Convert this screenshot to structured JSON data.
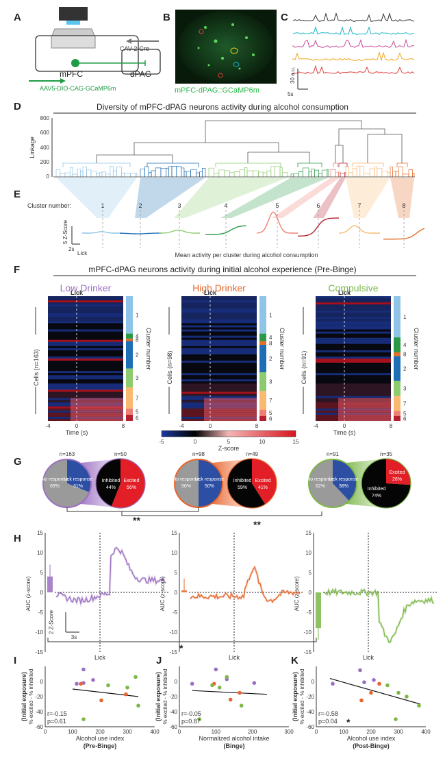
{
  "figure": {
    "panels": {
      "A": "A",
      "B": "B",
      "C": "C",
      "D": "D",
      "E": "E",
      "F": "F",
      "G": "G",
      "H": "H",
      "I": "I",
      "J": "J",
      "K": "K"
    },
    "colors": {
      "low": "#9b6fc1",
      "high": "#e8652b",
      "comp": "#7cb748",
      "blue": "#2c4ea3",
      "red": "#e21f26",
      "gray": "#999999",
      "cyan": "#17b5c8",
      "gfp": "#2bc44a"
    }
  },
  "panel_a": {
    "mpfc": "mPFC",
    "dpag": "dPAG",
    "virus_retro": "CAV-2-Cre",
    "virus_label": "AAV5-DIO-CAG-GCaMP6m"
  },
  "panel_b": {
    "caption": "mPFC-dPAG::GCaMP6m"
  },
  "panel_c": {
    "scale_y": "30 a.u.",
    "scale_x": "5s",
    "trace_colors": [
      "#333333",
      "#17b5c8",
      "#c9489a",
      "#f2a51a",
      "#e03c3c"
    ]
  },
  "panel_d": {
    "title": "Diversity of mPFC-dPAG neurons activity during alcohol consumption",
    "ylabel": "Linkage",
    "yticks": [
      "800",
      "600",
      "400",
      "200",
      "0"
    ]
  },
  "panel_e": {
    "cluster_label": "Cluster number:",
    "clusters": [
      "1",
      "2",
      "3",
      "4",
      "5",
      "6",
      "7",
      "8"
    ],
    "cluster_colors": [
      "#8fc4e6",
      "#1f6fb5",
      "#8ccc6e",
      "#2a9a47",
      "#f07f73",
      "#b61f2d",
      "#f9b971",
      "#e2702a"
    ],
    "zscale": "5 Z-Score",
    "tscale": "2s",
    "lick": "Lick",
    "caption": "Mean activity per cluster during alcohol consumption"
  },
  "panel_f": {
    "title": "mPFC-dPAG neurons activity during initial alcohol experience (Pre-Binge)",
    "groups": [
      {
        "name": "Low Drinker",
        "cells": "Cells (n=163)",
        "color": "#9b6fc1"
      },
      {
        "name": "High Drinker",
        "cells": "Cells (n=98)",
        "color": "#e8652b"
      },
      {
        "name": "Compulsive",
        "cells": "Cells (n=91)",
        "color": "#7cb748"
      }
    ],
    "lick": "Lick",
    "xticks": [
      "-4",
      "0",
      "8"
    ],
    "xlabel": "Time (s)",
    "cluster_axis": "Cluster number",
    "cluster_order": [
      "1",
      "4",
      "8",
      "2",
      "3",
      "7",
      "5",
      "6"
    ],
    "cbar_ticks": [
      "-5",
      "0",
      "5",
      "10",
      "15"
    ],
    "cbar_label": "Z-score"
  },
  "panel_g": {
    "groups": [
      {
        "n_all": "n=163",
        "n_lick": "n=50",
        "no": "No response",
        "no_pct": "69%",
        "lick": "Lick response",
        "lick_pct": "31%",
        "inh": "Inhibited",
        "inh_pct": "44%",
        "exc": "Excited",
        "exc_pct": "56%"
      },
      {
        "n_all": "n=98",
        "n_lick": "n=49",
        "no": "No response",
        "no_pct": "50%",
        "lick": "Lick response",
        "lick_pct": "50%",
        "inh": "Inhibited",
        "inh_pct": "59%",
        "exc": "Excited",
        "exc_pct": "41%"
      },
      {
        "n_all": "n=91",
        "n_lick": "n=35",
        "no": "No response",
        "no_pct": "62%",
        "lick": "Lick response",
        "lick_pct": "38%",
        "inh": "Inhibited",
        "inh_pct": "74%",
        "exc": "Excited",
        "exc_pct": "26%"
      }
    ],
    "sig1": "**",
    "sig2": "**"
  },
  "panel_h": {
    "ylabel": "AUC (z-score)",
    "yticks": [
      "15",
      "10",
      "5",
      "0",
      "-5",
      "-10",
      "-15"
    ],
    "lick": "Lick",
    "zscale": "2 Z-Score",
    "tscale": "3s",
    "sig": "*"
  },
  "panel_ijk": {
    "ylabel1": "(Initial exposure)",
    "ylabel2": "% excited - % inhibited",
    "plots": [
      {
        "xlabel": "Alcohol use index",
        "sub": "(Pre-Binge)",
        "r": "r=-0.15",
        "p": "p=0.61",
        "star": "",
        "xticks": [
          "0",
          "100",
          "200",
          "300",
          "400"
        ]
      },
      {
        "xlabel": "Normalized alcohol intake",
        "sub": "(Binge)",
        "r": "r=-0.05",
        "p": "p=0.87",
        "star": "",
        "xticks": [
          "0",
          "100",
          "200",
          "300"
        ]
      },
      {
        "xlabel": "Alcohol use index",
        "sub": "(Post-Binge)",
        "r": "r=-0.58",
        "p": "p=0.04",
        "star": "*",
        "xticks": [
          "0",
          "100",
          "200",
          "300",
          "400"
        ]
      }
    ],
    "yticks": [
      "0",
      "-20",
      "-40",
      "-60"
    ]
  },
  "chart_data": [
    {
      "type": "scatter",
      "title": "I",
      "xlabel": "Alcohol use index (Pre-Binge)",
      "ylabel": "% excited - % inhibited",
      "xlim": [
        0,
        400
      ],
      "ylim": [
        -60,
        20
      ],
      "series": [
        {
          "name": "Low Drinker",
          "color": "#9b6fc1",
          "x": [
            115,
            140,
            175,
            140
          ],
          "y": [
            -3,
            16,
            2,
            -2
          ]
        },
        {
          "name": "High Drinker",
          "color": "#e8652b",
          "x": [
            130,
            205,
            295
          ],
          "y": [
            -3,
            -25,
            -17
          ]
        },
        {
          "name": "Compulsive",
          "color": "#7cb748",
          "x": [
            140,
            230,
            300,
            330,
            340
          ],
          "y": [
            -50,
            -5,
            -8,
            6,
            -32
          ]
        }
      ],
      "fit": {
        "x": [
          100,
          340
        ],
        "y": [
          -10,
          -20
        ]
      }
    },
    {
      "type": "scatter",
      "title": "J",
      "xlabel": "Normalized alcohol intake (Binge)",
      "ylabel": "% excited - % inhibited",
      "xlim": [
        0,
        300
      ],
      "ylim": [
        -60,
        20
      ],
      "series": [
        {
          "name": "Low Drinker",
          "color": "#9b6fc1",
          "x": [
            35,
            100,
            130,
            205
          ],
          "y": [
            -3,
            16,
            3,
            -2
          ]
        },
        {
          "name": "High Drinker",
          "color": "#e8652b",
          "x": [
            95,
            140,
            165
          ],
          "y": [
            -3,
            -24,
            -15
          ]
        },
        {
          "name": "Compulsive",
          "color": "#7cb748",
          "x": [
            55,
            90,
            110,
            130,
            170
          ],
          "y": [
            -50,
            -5,
            -8,
            6,
            -32
          ]
        }
      ],
      "fit": {
        "x": [
          35,
          240
        ],
        "y": [
          -12,
          -17
        ]
      }
    },
    {
      "type": "scatter",
      "title": "K",
      "xlabel": "Alcohol use index (Post-Binge)",
      "ylabel": "% excited - % inhibited",
      "xlim": [
        0,
        400
      ],
      "ylim": [
        -60,
        20
      ],
      "series": [
        {
          "name": "Low Drinker",
          "color": "#9b6fc1",
          "x": [
            60,
            160,
            175,
            210
          ],
          "y": [
            -3,
            15,
            -1,
            2
          ]
        },
        {
          "name": "High Drinker",
          "color": "#e8652b",
          "x": [
            165,
            200,
            230
          ],
          "y": [
            -25,
            -15,
            -3
          ]
        },
        {
          "name": "Compulsive",
          "color": "#7cb748",
          "x": [
            260,
            290,
            300,
            330,
            375
          ],
          "y": [
            -5,
            -50,
            -15,
            -20,
            -32
          ]
        }
      ],
      "fit": {
        "x": [
          50,
          380
        ],
        "y": [
          4,
          -30
        ]
      }
    }
  ]
}
